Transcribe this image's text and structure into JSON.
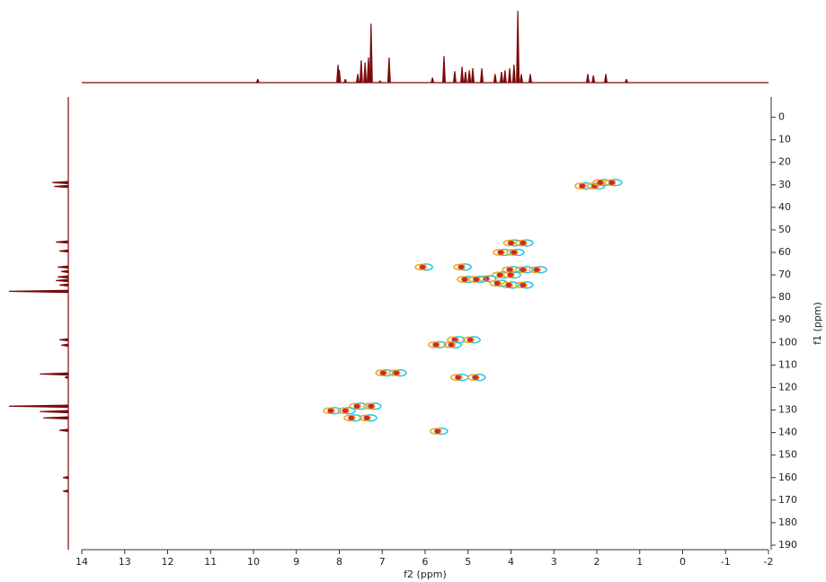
{
  "chart_data": {
    "type": "scatter",
    "xlabel": "f2 (ppm)",
    "ylabel": "f1 (ppm)",
    "xlim": [
      14,
      -2
    ],
    "ylim": [
      -9,
      192
    ],
    "xticks": [
      14,
      13,
      12,
      11,
      10,
      9,
      8,
      7,
      6,
      5,
      4,
      3,
      2,
      1,
      0,
      -1,
      -2
    ],
    "yticks": [
      0,
      10,
      20,
      30,
      40,
      50,
      60,
      70,
      80,
      90,
      100,
      110,
      120,
      130,
      140,
      150,
      160,
      170,
      180,
      190
    ],
    "colors": {
      "core": "#d7261b",
      "halo": "#f7a21b",
      "negative": "#27c4e8",
      "spectrum": "#7b0a0a"
    },
    "x": [
      2.34,
      2.05,
      1.92,
      1.65,
      4.0,
      3.72,
      4.24,
      3.93,
      6.06,
      5.16,
      4.03,
      3.72,
      3.4,
      4.26,
      4.01,
      4.58,
      5.08,
      4.81,
      4.32,
      4.05,
      3.72,
      5.31,
      4.95,
      5.75,
      5.39,
      6.98,
      6.67,
      5.23,
      4.83,
      7.59,
      7.26,
      8.2,
      7.86,
      7.72,
      7.36,
      5.71
    ],
    "values": [
      30.5,
      30.5,
      29,
      29,
      55.8,
      55.8,
      60,
      60,
      66.5,
      66.5,
      67.7,
      67.7,
      67.7,
      70,
      70,
      71.7,
      72,
      72,
      73.7,
      74.5,
      74.5,
      98.8,
      98.8,
      101,
      101,
      113.5,
      113.5,
      115.5,
      115.5,
      128.3,
      128.3,
      130.3,
      130.3,
      133.5,
      133.5,
      139.4
    ],
    "top_projection": {
      "x": [
        9.9,
        8.03,
        8.0,
        7.86,
        7.57,
        7.49,
        7.4,
        7.32,
        7.26,
        7.05,
        6.84,
        5.83,
        5.56,
        5.31,
        5.14,
        5.06,
        4.97,
        4.89,
        4.68,
        4.37,
        4.22,
        4.14,
        4.03,
        3.93,
        3.84,
        3.76,
        3.55,
        2.21,
        2.08,
        1.79,
        1.31
      ],
      "values": [
        5,
        25,
        18,
        5,
        12,
        31,
        28,
        35,
        82,
        3,
        35,
        7,
        37,
        16,
        22,
        15,
        17,
        20,
        20,
        12,
        15,
        17,
        20,
        25,
        100,
        12,
        12,
        12,
        10,
        12,
        5
      ]
    },
    "left_projection": {
      "y": [
        29,
        30.7,
        55.4,
        59.4,
        66.5,
        68.5,
        70.9,
        72.5,
        74.5,
        77.3,
        98.8,
        101.2,
        114,
        115.5,
        128.3,
        130.7,
        133.5,
        139,
        160,
        166
      ],
      "values": [
        27,
        24,
        21,
        15,
        18,
        12,
        18,
        21,
        15,
        100,
        15,
        12,
        48,
        6,
        100,
        48,
        42,
        15,
        9,
        9
      ]
    }
  }
}
